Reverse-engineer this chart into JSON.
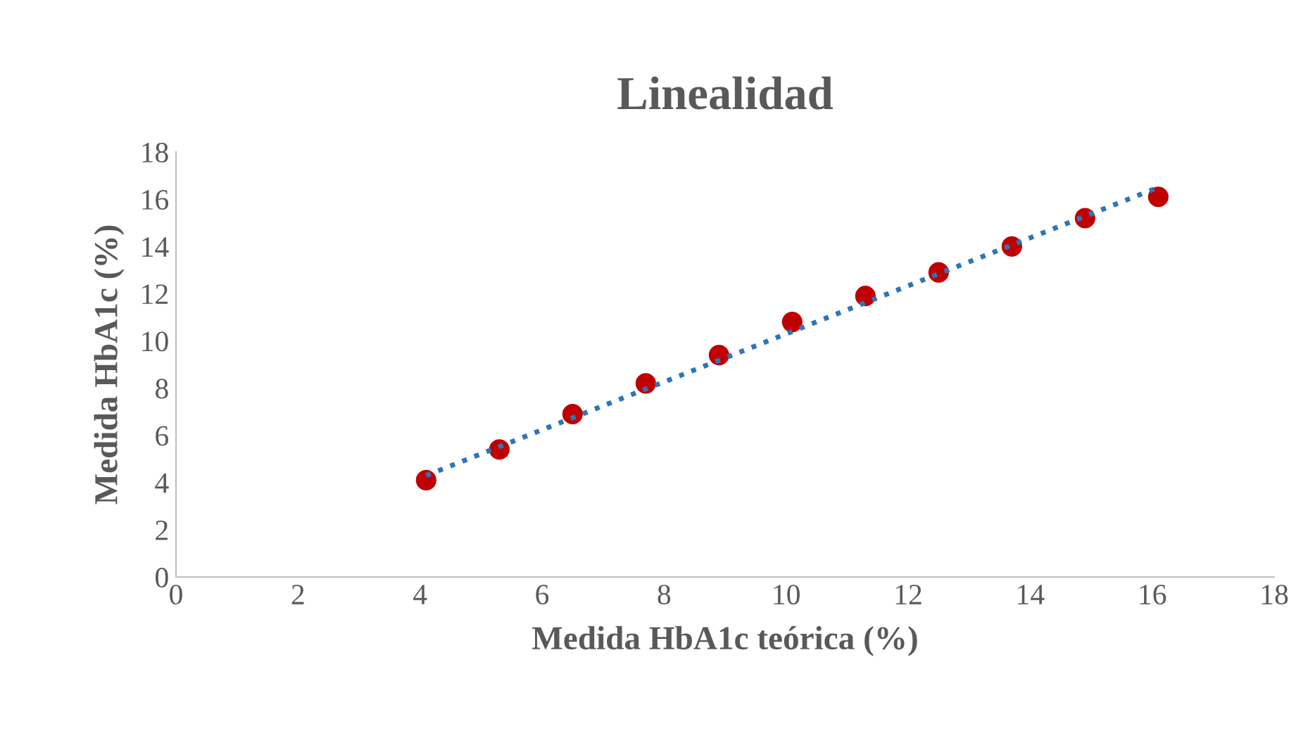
{
  "chart_data": {
    "type": "scatter",
    "title": "Linealidad",
    "xlabel": "Medida HbA1c teórica (%)",
    "ylabel": "Medida HbA1c (%)",
    "series": [
      {
        "color": "#c00000",
        "marker": "circle",
        "x": [
          4.1,
          5.3,
          6.5,
          7.7,
          8.9,
          10.1,
          11.3,
          12.5,
          13.7,
          14.9,
          16.1
        ],
        "values": [
          4.1,
          5.4,
          6.9,
          8.2,
          9.4,
          10.8,
          11.9,
          12.9,
          14.0,
          15.2,
          16.1
        ]
      },
      {
        "type": "line",
        "color": "#2e75b6",
        "line_style": "dotted",
        "marker": "none",
        "x": [
          4.1,
          16.1
        ],
        "values": [
          4.3,
          16.5
        ]
      }
    ],
    "xlim": [
      0,
      18
    ],
    "xticks": [
      0,
      2,
      4,
      6,
      8,
      10,
      12,
      14,
      16,
      18
    ],
    "ylim": [
      0,
      18
    ],
    "yticks": [
      0,
      2,
      4,
      6,
      8,
      10,
      12,
      14,
      16,
      18
    ],
    "grid": false,
    "legend": false
  }
}
